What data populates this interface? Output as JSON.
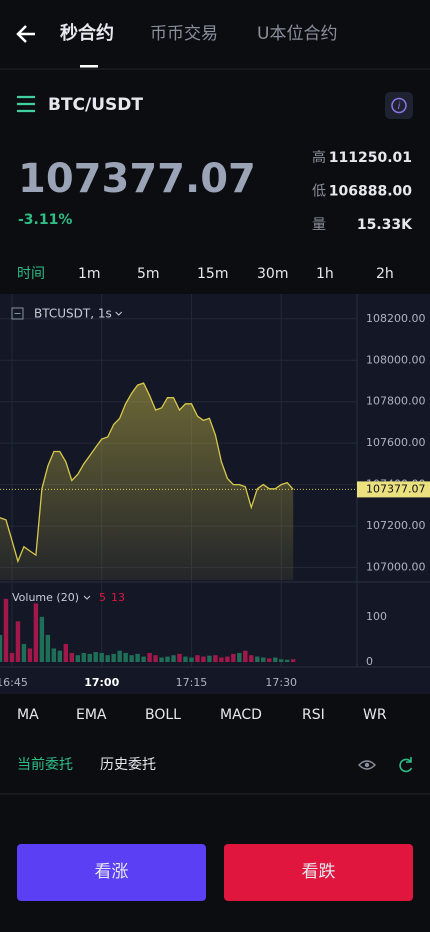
{
  "header": {
    "tabs": [
      "秒合约",
      "币币交易",
      "U本位合约"
    ]
  },
  "market": {
    "symbol": "BTC/USDT",
    "price": "107377.07",
    "change": "-3.11%",
    "stats": [
      {
        "label": "高",
        "value": "111250.01"
      },
      {
        "label": "低",
        "value": "106888.00"
      },
      {
        "label": "量",
        "value": "15.33K"
      }
    ]
  },
  "intervals": [
    "时间",
    "1m",
    "5m",
    "15m",
    "30m",
    "1h",
    "2h"
  ],
  "chart": {
    "type": "line",
    "legend": "BTCUSDT, 1s",
    "color": "#d8c84a",
    "x": [
      "16:43",
      "16:44",
      "16:45",
      "16:46",
      "16:47",
      "16:48",
      "16:49",
      "16:50",
      "16:51",
      "16:52",
      "16:53",
      "16:54",
      "16:55",
      "16:56",
      "16:57",
      "16:58",
      "16:59",
      "17:00",
      "17:01",
      "17:02",
      "17:03",
      "17:04",
      "17:05",
      "17:06",
      "17:07",
      "17:08",
      "17:09",
      "17:10",
      "17:11",
      "17:12",
      "17:13",
      "17:14",
      "17:15",
      "17:16",
      "17:17",
      "17:18",
      "17:19",
      "17:20",
      "17:21",
      "17:22",
      "17:23",
      "17:24",
      "17:25",
      "17:26",
      "17:27",
      "17:28",
      "17:29",
      "17:30",
      "17:31",
      "17:32"
    ],
    "values": [
      107240,
      107230,
      107130,
      107030,
      107100,
      107080,
      107060,
      107380,
      107490,
      107560,
      107560,
      107510,
      107420,
      107450,
      107500,
      107540,
      107580,
      107620,
      107630,
      107690,
      107720,
      107790,
      107840,
      107880,
      107890,
      107830,
      107760,
      107770,
      107820,
      107820,
      107760,
      107790,
      107790,
      107730,
      107710,
      107720,
      107640,
      107510,
      107430,
      107400,
      107400,
      107390,
      107290,
      107380,
      107400,
      107380,
      107380,
      107400,
      107410,
      107377.07
    ],
    "xlim": [
      "16:43",
      "17:43"
    ],
    "xticks": [
      "16:45",
      "17:00",
      "17:15",
      "17:30"
    ],
    "ylim": [
      106940,
      108310
    ],
    "yticks": [
      {
        "value": 107000,
        "label": "107000.00"
      },
      {
        "value": 107200,
        "label": "107200.00"
      },
      {
        "value": 107400,
        "label": "107400.00"
      },
      {
        "value": 107600,
        "label": "107600.00"
      },
      {
        "value": 107800,
        "label": "107800.00"
      },
      {
        "value": 108000,
        "label": "108000.00"
      },
      {
        "value": 108200,
        "label": "108200.00"
      }
    ],
    "last_price": {
      "value": 107377.07,
      "label": "107377.07"
    },
    "volume": {
      "title": "Volume (20)",
      "legend_values": [
        "5",
        "13"
      ],
      "up_color": "#1f6e57",
      "down_color": "#a3184a",
      "values": [
        60,
        140,
        20,
        90,
        40,
        30,
        130,
        100,
        60,
        30,
        25,
        40,
        20,
        15,
        20,
        18,
        22,
        20,
        15,
        18,
        25,
        20,
        15,
        18,
        12,
        20,
        15,
        10,
        12,
        15,
        18,
        12,
        10,
        15,
        12,
        14,
        15,
        10,
        12,
        18,
        20,
        25,
        15,
        12,
        10,
        8,
        10,
        6,
        5,
        6
      ],
      "ylim": [
        0,
        175
      ],
      "yticks": [
        0,
        100
      ]
    }
  },
  "indicators": [
    "MA",
    "EMA",
    "BOLL",
    "MACD",
    "RSI",
    "WR"
  ],
  "orders": {
    "tabs": [
      "当前委托",
      "历史委托"
    ]
  },
  "buttons": [
    "看涨",
    "看跌"
  ]
}
